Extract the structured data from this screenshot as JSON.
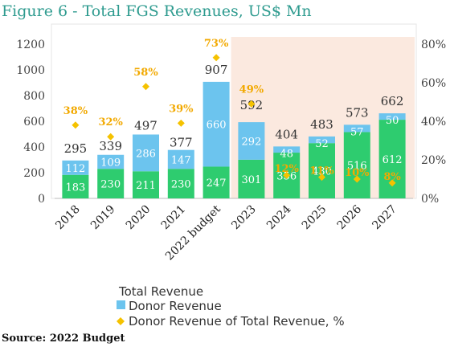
{
  "title": "Figure 6 - Total FGS Revenues, US$ Mn",
  "source": "Source: 2022 Budget",
  "colors": {
    "bar_green": "#2ecc6f",
    "bar_blue": "#6cc4ee",
    "diamond": "#f5c200",
    "pct_label": "#f2a900",
    "shade": "#fbe9df"
  },
  "chart_data": {
    "type": "bar",
    "stacked": true,
    "categories": [
      "2018",
      "2019",
      "2020",
      "2021",
      "2022 budget",
      "2023",
      "2024",
      "2025",
      "2026",
      "2027"
    ],
    "series": [
      {
        "name": "",
        "values": [
          183,
          230,
          211,
          230,
          247,
          301,
          356,
          430,
          516,
          612
        ]
      },
      {
        "name": "Donor Revenue",
        "values": [
          112,
          109,
          286,
          147,
          660,
          292,
          48,
          52,
          57,
          50
        ]
      }
    ],
    "totals": [
      295,
      339,
      497,
      377,
      907,
      592,
      404,
      483,
      573,
      662
    ],
    "line_series": {
      "name": "Donor Revenue of Total Revenue, %",
      "values": [
        38,
        32,
        58,
        39,
        73,
        49,
        12,
        11,
        10,
        8
      ],
      "labels": [
        "38%",
        "32%",
        "58%",
        "39%",
        "73%",
        "49%",
        "12%",
        "11%",
        "10%",
        "8%"
      ],
      "axis": "right"
    },
    "legend_heading": "Total Revenue",
    "legend_position": "bottom",
    "y_left": {
      "ylim": [
        0,
        1200
      ],
      "ticks": [
        "0",
        "200",
        "400",
        "600",
        "800",
        "1000",
        "1200"
      ]
    },
    "y_right": {
      "ylim": [
        0,
        80
      ],
      "ticks": [
        "0%",
        "20%",
        "40%",
        "60%",
        "80%"
      ]
    },
    "shaded_forecast_from": "2022 budget",
    "grid": false
  }
}
